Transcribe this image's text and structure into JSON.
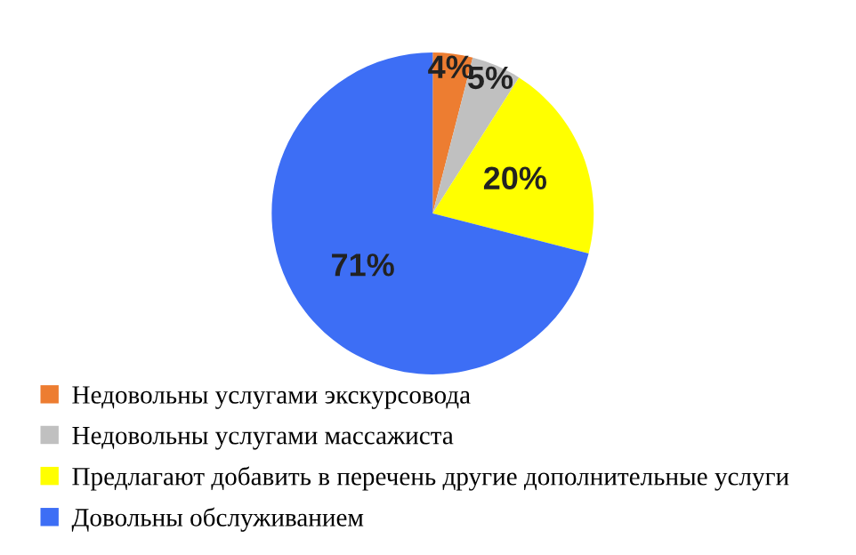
{
  "chart_data": {
    "type": "pie",
    "categories": [
      "Недовольны услугами экскурсовода",
      "Недовольны услугами массажиста",
      "Предлагают добавить в перечень другие дополнительные услуги",
      "Довольны обслуживанием"
    ],
    "values": [
      4,
      5,
      20,
      71
    ],
    "colors": [
      "#ed7d31",
      "#c0c0c0",
      "#ffff00",
      "#3d6ef5"
    ],
    "value_labels": [
      "4%",
      "5%",
      "20%",
      "71%"
    ],
    "legend": "bottom left"
  }
}
